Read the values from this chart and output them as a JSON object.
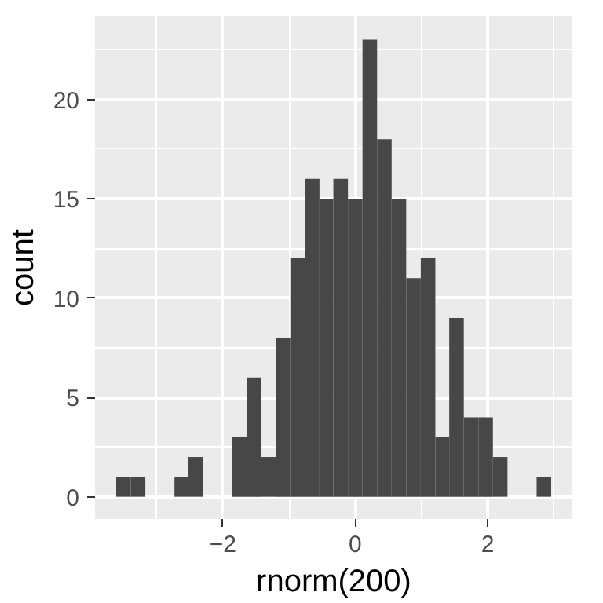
{
  "chart_data": {
    "type": "histogram",
    "xlabel": "rnorm(200)",
    "ylabel": "count",
    "color": "#474747",
    "bins": [
      -3.61,
      -3.39,
      -3.17,
      -2.73,
      -2.52,
      -2.3,
      -1.86,
      -1.64,
      -1.42,
      -1.2,
      -0.98,
      -0.76,
      -0.54,
      -0.33,
      -0.11,
      0.11,
      0.33,
      0.55,
      0.77,
      0.99,
      1.21,
      1.42,
      1.64,
      1.86,
      2.08,
      2.3,
      2.74,
      2.96
    ],
    "values": [
      1,
      1,
      0,
      1,
      2,
      0,
      3,
      6,
      2,
      8,
      12,
      16,
      15,
      16,
      15,
      23,
      18,
      15,
      11,
      12,
      3,
      9,
      4,
      4,
      2,
      0,
      1
    ],
    "xlim": [
      -3.93,
      3.28
    ],
    "ylim": [
      -1.12,
      24.17
    ],
    "xticks": [
      -2,
      0,
      2
    ],
    "yticks": [
      0,
      5,
      10,
      15,
      20
    ],
    "grid": true
  }
}
